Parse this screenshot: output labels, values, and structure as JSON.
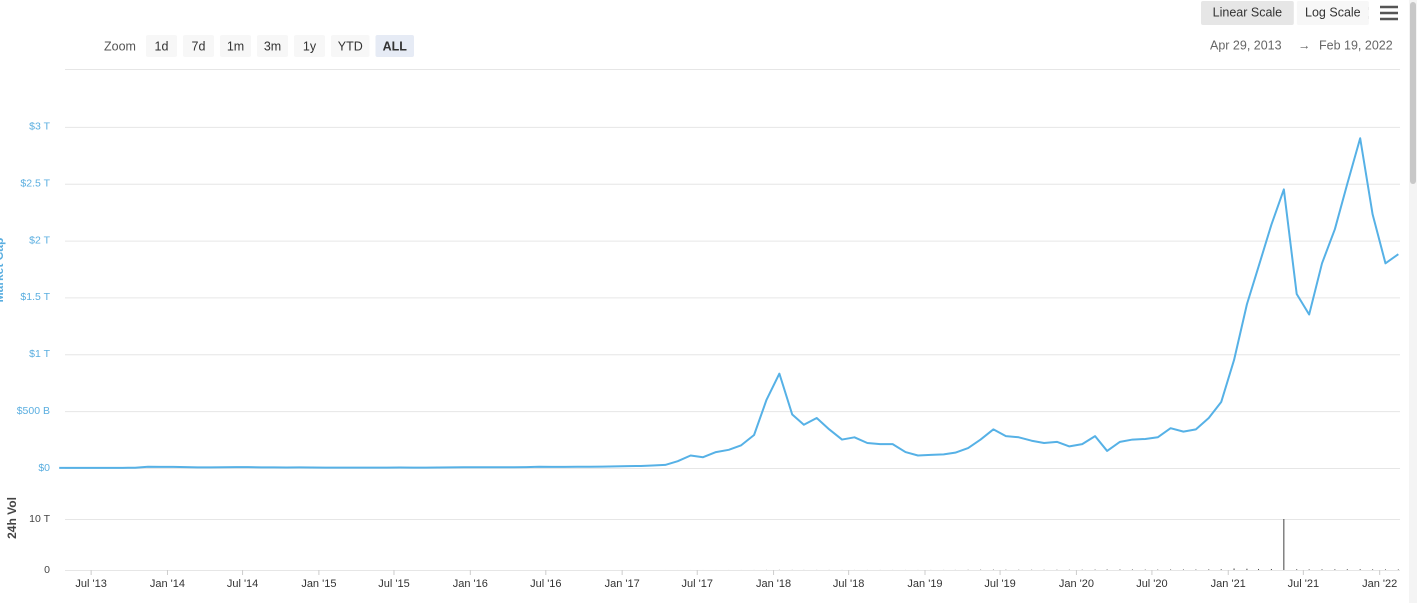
{
  "ui": {
    "zoom_label": "Zoom",
    "zoom_buttons": [
      "1d",
      "7d",
      "1m",
      "3m",
      "1y",
      "YTD",
      "ALL"
    ],
    "active_zoom": 6,
    "scale_buttons": [
      "Linear Scale",
      "Log Scale"
    ],
    "active_scale": 0,
    "range": {
      "from": "Apr 29, 2013",
      "arrow": "→",
      "to": "Feb 19, 2022"
    }
  },
  "chart_data": [
    {
      "type": "line",
      "y_label": "Market Cap",
      "color": "#56b1e6",
      "grid": true,
      "xlim": [
        "2013-04-29",
        "2022-02-19"
      ],
      "ylim": [
        0,
        3500000000000.0
      ],
      "yticks": [
        {
          "value": 0,
          "label": "$0"
        },
        {
          "value": 500000000000.0,
          "label": "$500 B"
        },
        {
          "value": 1000000000000.0,
          "label": "$1 T"
        },
        {
          "value": 1500000000000.0,
          "label": "$1.5 T"
        },
        {
          "value": 2000000000000.0,
          "label": "$2 T"
        },
        {
          "value": 2500000000000.0,
          "label": "$2.5 T"
        },
        {
          "value": 3000000000000.0,
          "label": "$3 T"
        }
      ],
      "x": [
        "2013-04",
        "2013-05",
        "2013-06",
        "2013-07",
        "2013-08",
        "2013-09",
        "2013-10",
        "2013-11",
        "2013-12",
        "2014-01",
        "2014-02",
        "2014-03",
        "2014-04",
        "2014-05",
        "2014-06",
        "2014-07",
        "2014-08",
        "2014-09",
        "2014-10",
        "2014-11",
        "2014-12",
        "2015-01",
        "2015-02",
        "2015-03",
        "2015-04",
        "2015-05",
        "2015-06",
        "2015-07",
        "2015-08",
        "2015-09",
        "2015-10",
        "2015-11",
        "2015-12",
        "2016-01",
        "2016-02",
        "2016-03",
        "2016-04",
        "2016-05",
        "2016-06",
        "2016-07",
        "2016-08",
        "2016-09",
        "2016-10",
        "2016-11",
        "2016-12",
        "2017-01",
        "2017-02",
        "2017-03",
        "2017-04",
        "2017-05",
        "2017-06",
        "2017-07",
        "2017-08",
        "2017-09",
        "2017-10",
        "2017-11",
        "2017-12",
        "2018-01",
        "2018-02",
        "2018-03",
        "2018-04",
        "2018-05",
        "2018-06",
        "2018-07",
        "2018-08",
        "2018-09",
        "2018-10",
        "2018-11",
        "2018-12",
        "2019-01",
        "2019-02",
        "2019-03",
        "2019-04",
        "2019-05",
        "2019-06",
        "2019-07",
        "2019-08",
        "2019-09",
        "2019-10",
        "2019-11",
        "2019-12",
        "2020-01",
        "2020-02",
        "2020-03",
        "2020-04",
        "2020-05",
        "2020-06",
        "2020-07",
        "2020-08",
        "2020-09",
        "2020-10",
        "2020-11",
        "2020-12",
        "2021-01",
        "2021-02",
        "2021-03",
        "2021-04",
        "2021-05",
        "2021-06",
        "2021-07",
        "2021-08",
        "2021-09",
        "2021-10",
        "2021-11",
        "2021-12",
        "2022-01",
        "2022-02"
      ],
      "values": [
        1500000000.0,
        1300000000.0,
        1200000000.0,
        1100000000.0,
        1400000000.0,
        1600000000.0,
        2500000000.0,
        11000000000.0,
        10000000000.0,
        10000000000.0,
        8000000000.0,
        6000000000.0,
        6000000000.0,
        7000000000.0,
        8000000000.0,
        8000000000.0,
        6000000000.0,
        5000000000.0,
        4000000000.0,
        5000000000.0,
        4000000000.0,
        3000000000.0,
        3500000000.0,
        3500000000.0,
        3300000000.0,
        3200000000.0,
        3500000000.0,
        4000000000.0,
        3500000000.0,
        3500000000.0,
        4500000000.0,
        5500000000.0,
        6500000000.0,
        6500000000.0,
        6700000000.0,
        6500000000.0,
        7000000000.0,
        8000000000.0,
        11000000000.0,
        10000000000.0,
        10000000000.0,
        10500000000.0,
        11000000000.0,
        12000000000.0,
        14000000000.0,
        17000000000.0,
        18000000000.0,
        22000000000.0,
        27000000000.0,
        60000000000.0,
        110000000000.0,
        95000000000.0,
        140000000000.0,
        160000000000.0,
        200000000000.0,
        290000000000.0,
        600000000000.0,
        830000000000.0,
        470000000000.0,
        380000000000.0,
        440000000000.0,
        340000000000.0,
        250000000000.0,
        270000000000.0,
        220000000000.0,
        210000000000.0,
        210000000000.0,
        140000000000.0,
        110000000000.0,
        115000000000.0,
        120000000000.0,
        135000000000.0,
        175000000000.0,
        250000000000.0,
        340000000000.0,
        280000000000.0,
        270000000000.0,
        240000000000.0,
        220000000000.0,
        230000000000.0,
        190000000000.0,
        210000000000.0,
        280000000000.0,
        150000000000.0,
        230000000000.0,
        250000000000.0,
        255000000000.0,
        270000000000.0,
        350000000000.0,
        320000000000.0,
        340000000000.0,
        440000000000.0,
        580000000000.0,
        950000000000.0,
        1440000000000.0,
        1770000000000.0,
        2140000000000.0,
        2450000000000.0,
        1530000000000.0,
        1350000000000.0,
        1800000000000.0,
        2100000000000.0,
        2500000000000.0,
        2900000000000.0,
        2230000000000.0,
        1800000000000.0,
        1880000000000.0
      ]
    },
    {
      "type": "bar",
      "y_label": "24h Vol",
      "color": "#444444",
      "grid": true,
      "xlim": [
        "2013-04-29",
        "2022-02-19"
      ],
      "ylim": [
        0,
        10000000000000.0
      ],
      "yticks": [
        0,
        {
          "value": 10000000000000.0,
          "label": "10 T"
        }
      ],
      "xticks": [
        {
          "value": "2013-07-01",
          "label": "Jul '13"
        },
        {
          "value": "2014-01-01",
          "label": "Jan '14"
        },
        {
          "value": "2014-07-01",
          "label": "Jul '14"
        },
        {
          "value": "2015-01-01",
          "label": "Jan '15"
        },
        {
          "value": "2015-07-01",
          "label": "Jul '15"
        },
        {
          "value": "2016-01-01",
          "label": "Jan '16"
        },
        {
          "value": "2016-07-01",
          "label": "Jul '16"
        },
        {
          "value": "2017-01-01",
          "label": "Jan '17"
        },
        {
          "value": "2017-07-01",
          "label": "Jul '17"
        },
        {
          "value": "2018-01-01",
          "label": "Jan '18"
        },
        {
          "value": "2018-07-01",
          "label": "Jul '18"
        },
        {
          "value": "2019-01-01",
          "label": "Jan '19"
        },
        {
          "value": "2019-07-01",
          "label": "Jul '19"
        },
        {
          "value": "2020-01-01",
          "label": "Jan '20"
        },
        {
          "value": "2020-07-01",
          "label": "Jul '20"
        },
        {
          "value": "2021-01-01",
          "label": "Jan '21"
        },
        {
          "value": "2021-07-01",
          "label": "Jul '21"
        },
        {
          "value": "2022-01-01",
          "label": "Jan '22"
        }
      ],
      "x": [
        "2013-04",
        "2013-05",
        "2013-06",
        "2013-07",
        "2013-08",
        "2013-09",
        "2013-10",
        "2013-11",
        "2013-12",
        "2014-01",
        "2014-02",
        "2014-03",
        "2014-04",
        "2014-05",
        "2014-06",
        "2014-07",
        "2014-08",
        "2014-09",
        "2014-10",
        "2014-11",
        "2014-12",
        "2015-01",
        "2015-02",
        "2015-03",
        "2015-04",
        "2015-05",
        "2015-06",
        "2015-07",
        "2015-08",
        "2015-09",
        "2015-10",
        "2015-11",
        "2015-12",
        "2016-01",
        "2016-02",
        "2016-03",
        "2016-04",
        "2016-05",
        "2016-06",
        "2016-07",
        "2016-08",
        "2016-09",
        "2016-10",
        "2016-11",
        "2016-12",
        "2017-01",
        "2017-02",
        "2017-03",
        "2017-04",
        "2017-05",
        "2017-06",
        "2017-07",
        "2017-08",
        "2017-09",
        "2017-10",
        "2017-11",
        "2017-12",
        "2018-01",
        "2018-02",
        "2018-03",
        "2018-04",
        "2018-05",
        "2018-06",
        "2018-07",
        "2018-08",
        "2018-09",
        "2018-10",
        "2018-11",
        "2018-12",
        "2019-01",
        "2019-02",
        "2019-03",
        "2019-04",
        "2019-05",
        "2019-06",
        "2019-07",
        "2019-08",
        "2019-09",
        "2019-10",
        "2019-11",
        "2019-12",
        "2020-01",
        "2020-02",
        "2020-03",
        "2020-04",
        "2020-05",
        "2020-06",
        "2020-07",
        "2020-08",
        "2020-09",
        "2020-10",
        "2020-11",
        "2020-12",
        "2021-01",
        "2021-02",
        "2021-03",
        "2021-04",
        "2021-05",
        "2021-06",
        "2021-07",
        "2021-08",
        "2021-09",
        "2021-10",
        "2021-11",
        "2021-12",
        "2022-01",
        "2022-02"
      ],
      "values": [
        20000000.0,
        20000000.0,
        20000000.0,
        20000000.0,
        20000000.0,
        30000000.0,
        50000000.0,
        200000000.0,
        200000000.0,
        100000000.0,
        100000000.0,
        50000000.0,
        50000000.0,
        50000000.0,
        50000000.0,
        30000000.0,
        30000000.0,
        30000000.0,
        30000000.0,
        30000000.0,
        30000000.0,
        30000000.0,
        30000000.0,
        30000000.0,
        30000000.0,
        30000000.0,
        30000000.0,
        50000000.0,
        50000000.0,
        50000000.0,
        50000000.0,
        100000000.0,
        100000000.0,
        100000000.0,
        100000000.0,
        100000000.0,
        100000000.0,
        100000000.0,
        200000000.0,
        100000000.0,
        100000000.0,
        100000000.0,
        100000000.0,
        100000000.0,
        200000000.0,
        300000000.0,
        300000000.0,
        500000000.0,
        1000000000.0,
        2000000000.0,
        3000000000.0,
        2000000000.0,
        3000000000.0,
        4000000000.0,
        5000000000.0,
        8000000000.0,
        20000000000.0,
        30000000000.0,
        20000000000.0,
        15000000000.0,
        15000000000.0,
        15000000000.0,
        10000000000.0,
        10000000000.0,
        10000000000.0,
        10000000000.0,
        10000000000.0,
        10000000000.0,
        10000000000.0,
        10000000000.0,
        15000000000.0,
        20000000000.0,
        40000000000.0,
        60000000000.0,
        70000000000.0,
        60000000000.0,
        50000000000.0,
        50000000000.0,
        50000000000.0,
        50000000000.0,
        50000000000.0,
        60000000000.0,
        80000000000.0,
        100000000000.0,
        100000000000.0,
        100000000000.0,
        80000000000.0,
        80000000000.0,
        100000000000.0,
        100000000000.0,
        100000000000.0,
        120000000000.0,
        150000000000.0,
        300000000000.0,
        250000000000.0,
        200000000000.0,
        200000000000.0,
        10000000000000.0,
        150000000000.0,
        120000000000.0,
        130000000000.0,
        140000000000.0,
        150000000000.0,
        150000000000.0,
        130000000000.0,
        120000000000.0,
        110000000000.0
      ]
    }
  ]
}
